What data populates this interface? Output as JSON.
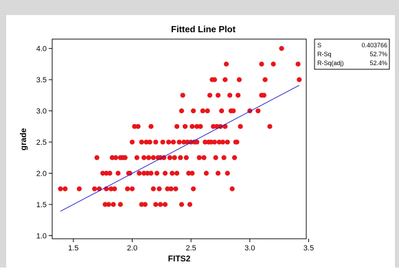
{
  "chart_data": {
    "type": "scatter",
    "title": "Fitted Line Plot",
    "xlabel": "FITS2",
    "ylabel": "grade",
    "xlim": [
      1.32,
      3.48
    ],
    "ylim": [
      0.95,
      4.15
    ],
    "xticks": [
      1.5,
      2.0,
      2.5,
      3.0,
      3.5
    ],
    "xtick_labels": [
      "1.5",
      "2.0",
      "2.5",
      "3.0",
      "3.5"
    ],
    "yticks": [
      1.0,
      1.5,
      2.0,
      2.5,
      3.0,
      3.5,
      4.0
    ],
    "ytick_labels": [
      "1.0",
      "1.5",
      "2.0",
      "2.5",
      "3.0",
      "3.5",
      "4.0"
    ],
    "grid": false,
    "fit_line": {
      "x": [
        1.39,
        3.42
      ],
      "y": [
        1.39,
        3.41
      ]
    },
    "stats": [
      {
        "label": "S",
        "value": "0.403766"
      },
      {
        "label": "R-Sq",
        "value": "52.7%"
      },
      {
        "label": "R-Sq(adj)",
        "value": "52.4%"
      }
    ],
    "points": [
      [
        1.39,
        1.75
      ],
      [
        1.43,
        1.75
      ],
      [
        1.55,
        1.75
      ],
      [
        1.68,
        1.75
      ],
      [
        1.7,
        2.25
      ],
      [
        1.72,
        1.75
      ],
      [
        1.75,
        2.0
      ],
      [
        1.77,
        1.5
      ],
      [
        1.78,
        2.0
      ],
      [
        1.78,
        1.75
      ],
      [
        1.8,
        1.5
      ],
      [
        1.81,
        2.0
      ],
      [
        1.82,
        1.75
      ],
      [
        1.83,
        2.25
      ],
      [
        1.84,
        1.5
      ],
      [
        1.85,
        1.75
      ],
      [
        1.86,
        2.25
      ],
      [
        1.88,
        2.0
      ],
      [
        1.9,
        2.25
      ],
      [
        1.9,
        1.5
      ],
      [
        1.92,
        2.25
      ],
      [
        1.94,
        2.25
      ],
      [
        1.96,
        1.75
      ],
      [
        1.97,
        2.0
      ],
      [
        1.98,
        2.0
      ],
      [
        2.0,
        2.5
      ],
      [
        2.0,
        1.75
      ],
      [
        2.02,
        2.75
      ],
      [
        2.04,
        2.25
      ],
      [
        2.05,
        2.75
      ],
      [
        2.06,
        2.0
      ],
      [
        2.08,
        2.5
      ],
      [
        2.08,
        1.5
      ],
      [
        2.1,
        2.25
      ],
      [
        2.1,
        2.0
      ],
      [
        2.11,
        1.5
      ],
      [
        2.12,
        2.5
      ],
      [
        2.13,
        2.0
      ],
      [
        2.14,
        2.25
      ],
      [
        2.15,
        2.5
      ],
      [
        2.16,
        2.75
      ],
      [
        2.16,
        2.0
      ],
      [
        2.18,
        1.75
      ],
      [
        2.18,
        2.25
      ],
      [
        2.2,
        1.5
      ],
      [
        2.2,
        2.5
      ],
      [
        2.21,
        2.0
      ],
      [
        2.22,
        2.25
      ],
      [
        2.23,
        1.75
      ],
      [
        2.24,
        2.25
      ],
      [
        2.24,
        1.5
      ],
      [
        2.26,
        2.5
      ],
      [
        2.27,
        2.25
      ],
      [
        2.28,
        1.5
      ],
      [
        2.28,
        2.0
      ],
      [
        2.3,
        1.75
      ],
      [
        2.31,
        2.5
      ],
      [
        2.32,
        2.25
      ],
      [
        2.33,
        1.75
      ],
      [
        2.34,
        2.0
      ],
      [
        2.35,
        2.5
      ],
      [
        2.36,
        2.25
      ],
      [
        2.37,
        1.75
      ],
      [
        2.38,
        2.75
      ],
      [
        2.38,
        2.0
      ],
      [
        2.4,
        2.5
      ],
      [
        2.41,
        2.25
      ],
      [
        2.42,
        3.0
      ],
      [
        2.42,
        1.5
      ],
      [
        2.43,
        3.25
      ],
      [
        2.44,
        2.5
      ],
      [
        2.45,
        2.75
      ],
      [
        2.46,
        2.25
      ],
      [
        2.47,
        2.5
      ],
      [
        2.48,
        2.0
      ],
      [
        2.49,
        1.5
      ],
      [
        2.5,
        2.5
      ],
      [
        2.51,
        2.75
      ],
      [
        2.51,
        2.0
      ],
      [
        2.52,
        3.0
      ],
      [
        2.52,
        1.75
      ],
      [
        2.53,
        2.5
      ],
      [
        2.55,
        2.5
      ],
      [
        2.55,
        2.75
      ],
      [
        2.57,
        2.25
      ],
      [
        2.58,
        2.75
      ],
      [
        2.6,
        3.0
      ],
      [
        2.61,
        2.25
      ],
      [
        2.62,
        2.5
      ],
      [
        2.63,
        2.0
      ],
      [
        2.64,
        3.0
      ],
      [
        2.65,
        2.5
      ],
      [
        2.66,
        3.25
      ],
      [
        2.67,
        2.5
      ],
      [
        2.68,
        3.5
      ],
      [
        2.69,
        2.75
      ],
      [
        2.7,
        2.5
      ],
      [
        2.7,
        3.5
      ],
      [
        2.71,
        2.25
      ],
      [
        2.72,
        2.75
      ],
      [
        2.73,
        3.25
      ],
      [
        2.73,
        2.0
      ],
      [
        2.74,
        2.5
      ],
      [
        2.75,
        2.75
      ],
      [
        2.76,
        3.0
      ],
      [
        2.77,
        2.5
      ],
      [
        2.78,
        2.25
      ],
      [
        2.79,
        2.75
      ],
      [
        2.79,
        3.5
      ],
      [
        2.8,
        3.75
      ],
      [
        2.81,
        2.5
      ],
      [
        2.81,
        2.0
      ],
      [
        2.83,
        3.25
      ],
      [
        2.84,
        3.0
      ],
      [
        2.85,
        1.75
      ],
      [
        2.86,
        3.0
      ],
      [
        2.87,
        2.25
      ],
      [
        2.88,
        2.5
      ],
      [
        2.89,
        2.5
      ],
      [
        2.9,
        3.25
      ],
      [
        2.91,
        3.5
      ],
      [
        2.92,
        2.75
      ],
      [
        3.0,
        3.0
      ],
      [
        3.07,
        3.0
      ],
      [
        3.1,
        3.75
      ],
      [
        3.1,
        3.25
      ],
      [
        3.12,
        3.25
      ],
      [
        3.13,
        3.5
      ],
      [
        3.17,
        2.75
      ],
      [
        3.2,
        3.75
      ],
      [
        3.27,
        4.0
      ],
      [
        3.41,
        3.75
      ],
      [
        3.42,
        3.5
      ]
    ]
  }
}
